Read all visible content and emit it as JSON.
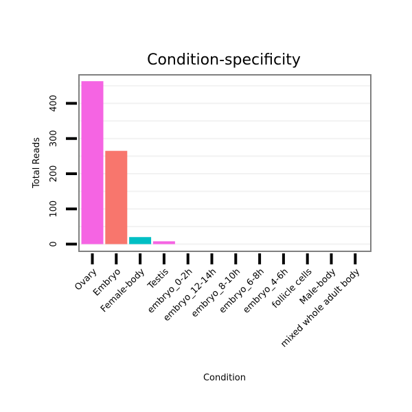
{
  "chart_data": {
    "type": "bar",
    "title": "Condition-specificity",
    "xlabel": "Condition",
    "ylabel": "Total Reads",
    "ylim": [
      0,
      480
    ],
    "yticks": [
      0,
      100,
      200,
      300,
      400
    ],
    "grid": true,
    "categories": [
      "Ovary",
      "Embryo",
      "Female-body",
      "Testis",
      "embryo_0-2h",
      "embryo_12-14h",
      "embryo_8-10h",
      "embryo_6-8h",
      "embryo_4-6h",
      "follicle cells",
      "Male-body",
      "mixed whole adult body"
    ],
    "values": [
      463,
      265,
      20,
      8,
      0,
      0,
      0,
      0,
      0,
      0,
      0,
      0
    ],
    "colors": [
      "#f564e3",
      "#f8766d",
      "#00bfc4",
      "#f564e3",
      "#f8766d",
      "#f8766d",
      "#f8766d",
      "#f8766d",
      "#f8766d",
      "#f8766d",
      "#f8766d",
      "#f8766d"
    ],
    "panel_border_color": "#7f7f7f",
    "grid_color": "#f2f2f2"
  }
}
